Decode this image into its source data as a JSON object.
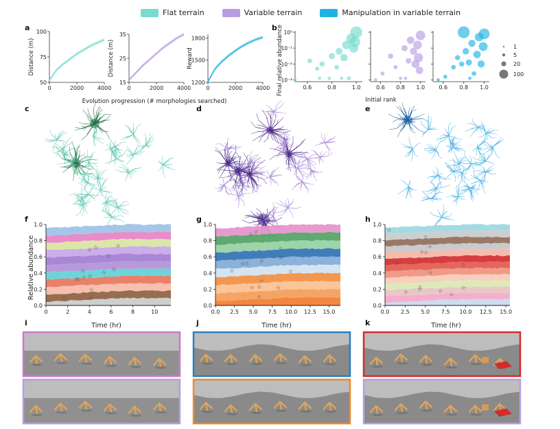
{
  "legend": [
    {
      "label": "Flat terrain",
      "color": "#76dcd0"
    },
    {
      "label": "Variable terrain",
      "color": "#b79ee3"
    },
    {
      "label": "Manipulation in variable terrain",
      "color": "#20b3e2"
    }
  ],
  "panel_letters": {
    "a": "a",
    "b": "b",
    "c": "c",
    "d": "d",
    "e": "e",
    "f": "f",
    "g": "g",
    "h": "h",
    "i": "i",
    "j": "j",
    "k": "k"
  },
  "panel_a": {
    "xlabel": "Evolution progression (# morphologies searched)",
    "xticks": [
      "0",
      "2000",
      "4000"
    ],
    "plots": [
      {
        "ylabel": "Distance (m)",
        "yticks": [
          "50",
          "75",
          "100"
        ],
        "color": "#76dcd0"
      },
      {
        "ylabel": "Distance (m)",
        "yticks": [
          "15",
          "25",
          "35"
        ],
        "color": "#b79ee3"
      },
      {
        "ylabel": "Reward",
        "yticks": [
          "1200",
          "1500",
          "1800"
        ],
        "color": "#20b3e2"
      }
    ]
  },
  "panel_b": {
    "ylabel": "Final relative abundance",
    "xlabel": "Initial rank",
    "yticks": [
      "10⁰",
      "10⁻¹",
      "10⁻²",
      "10⁻³"
    ],
    "xticks": [
      "0.6",
      "0.8",
      "1.0"
    ],
    "size_legend": [
      "1",
      "5",
      "20",
      "100"
    ]
  },
  "panel_fgh": {
    "ylabel": "Relative abundance",
    "xlabel": "Time (hr)",
    "yticks": [
      "0.0",
      "0.2",
      "0.4",
      "0.6",
      "0.8",
      "1.0"
    ],
    "f_xticks": [
      "0",
      "2",
      "4",
      "6",
      "8",
      "10"
    ],
    "g_xticks": [
      "0.0",
      "2.5",
      "5.0",
      "7.5",
      "10.0",
      "12.5",
      "15.0"
    ],
    "h_xticks": [
      "0.0",
      "2.5",
      "5.0",
      "7.5",
      "10.0",
      "12.5",
      "15.0"
    ]
  },
  "chart_data": [
    {
      "type": "line",
      "title": "Flat terrain",
      "xlabel": "Evolution progression (# morphologies searched)",
      "ylabel": "Distance (m)",
      "x": [
        0,
        500,
        1000,
        1500,
        2000,
        2500,
        3000,
        3500,
        4000
      ],
      "series": [
        {
          "name": "Flat terrain",
          "values": [
            52,
            62,
            68,
            73,
            78,
            82,
            86,
            89,
            92
          ]
        }
      ],
      "ylim": [
        50,
        100
      ]
    },
    {
      "type": "line",
      "title": "Variable terrain",
      "xlabel": "Evolution progression (# morphologies searched)",
      "ylabel": "Distance (m)",
      "x": [
        0,
        500,
        1000,
        1500,
        2000,
        2500,
        3000,
        3500,
        4000
      ],
      "series": [
        {
          "name": "Variable terrain",
          "values": [
            16,
            19,
            22,
            24.5,
            27,
            29.5,
            31.5,
            33.5,
            35
          ]
        }
      ],
      "ylim": [
        15,
        35
      ]
    },
    {
      "type": "line",
      "title": "Manipulation in variable terrain",
      "xlabel": "Evolution progression (# morphologies searched)",
      "ylabel": "Reward",
      "x": [
        0,
        500,
        1000,
        1500,
        2000,
        2500,
        3000,
        3500,
        4000
      ],
      "series": [
        {
          "name": "Manipulation in variable terrain",
          "values": [
            1210,
            1380,
            1480,
            1560,
            1630,
            1690,
            1740,
            1780,
            1810
          ]
        }
      ],
      "ylim": [
        1200,
        1850
      ]
    }
  ],
  "scatter_b": [
    {
      "color": "#76dcd0",
      "points": [
        [
          0.5,
          -3,
          1
        ],
        [
          0.62,
          -1.8,
          3
        ],
        [
          0.68,
          -2.3,
          2
        ],
        [
          0.72,
          -2.0,
          4
        ],
        [
          0.78,
          -2.9,
          1
        ],
        [
          0.8,
          -1.5,
          6
        ],
        [
          0.84,
          -2.2,
          3
        ],
        [
          0.86,
          -1.2,
          8
        ],
        [
          0.9,
          -1.6,
          10
        ],
        [
          0.92,
          -0.8,
          14
        ],
        [
          0.94,
          -2.9,
          2
        ],
        [
          0.96,
          -0.4,
          20
        ],
        [
          0.98,
          -1.0,
          16
        ],
        [
          1.0,
          0,
          30
        ],
        [
          0.99,
          -0.6,
          22
        ],
        [
          0.88,
          -2.9,
          1
        ],
        [
          0.7,
          -2.9,
          1
        ]
      ]
    },
    {
      "color": "#b79ee3",
      "points": [
        [
          0.55,
          -3,
          1
        ],
        [
          0.62,
          -2.6,
          2
        ],
        [
          0.7,
          -1.5,
          4
        ],
        [
          0.75,
          -2.2,
          2
        ],
        [
          0.8,
          -2.9,
          1
        ],
        [
          0.84,
          -1.0,
          6
        ],
        [
          0.88,
          -1.8,
          5
        ],
        [
          0.9,
          -0.5,
          10
        ],
        [
          0.93,
          -1.2,
          9
        ],
        [
          0.95,
          -2.0,
          12
        ],
        [
          0.97,
          -0.8,
          14
        ],
        [
          0.98,
          -1.6,
          16
        ],
        [
          1.0,
          -0.2,
          18
        ],
        [
          0.99,
          -2.4,
          10
        ],
        [
          0.85,
          -2.9,
          1
        ]
      ]
    },
    {
      "color": "#20b3e2",
      "points": [
        [
          0.55,
          -3,
          1
        ],
        [
          0.62,
          -2.8,
          2
        ],
        [
          0.7,
          -2.2,
          3
        ],
        [
          0.74,
          -1.6,
          4
        ],
        [
          0.78,
          -2.0,
          4
        ],
        [
          0.82,
          -1.2,
          7
        ],
        [
          0.85,
          -1.9,
          6
        ],
        [
          0.88,
          -0.7,
          9
        ],
        [
          0.9,
          -2.6,
          3
        ],
        [
          0.93,
          -1.4,
          10
        ],
        [
          0.95,
          -0.3,
          14
        ],
        [
          0.97,
          -2.0,
          9
        ],
        [
          0.99,
          -0.9,
          15
        ],
        [
          1.0,
          -0.1,
          24
        ],
        [
          0.8,
          0,
          30
        ],
        [
          0.86,
          -2.9,
          1
        ]
      ]
    }
  ],
  "scenes": {
    "i": {
      "border": "#cc77cc"
    },
    "i2": {
      "border": "#b79ee3"
    },
    "j": {
      "border": "#2a7fbf"
    },
    "j2": {
      "border": "#f0882a"
    },
    "k": {
      "border": "#d42b2b"
    },
    "k2": {
      "border": "#b79ee3"
    }
  }
}
